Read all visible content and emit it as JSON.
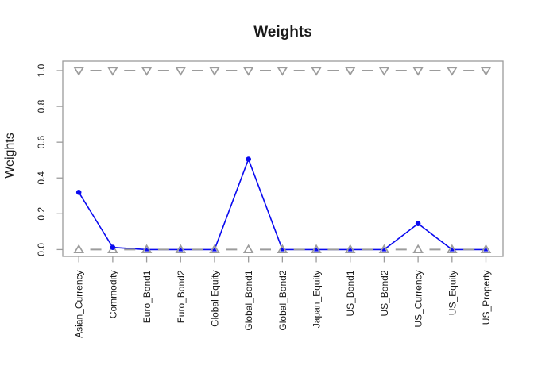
{
  "chart_data": {
    "type": "line",
    "title": "Weights",
    "xlabel": "",
    "ylabel": "Weights",
    "categories": [
      "Asian_Currency",
      "Commodity",
      "Euro_Bond1",
      "Euro_Bond2",
      "Global Equity",
      "Global_Bond1",
      "Global_Bond2",
      "Japan_Equity",
      "US_Bond1",
      "US_Bond2",
      "US_Currency",
      "US_Equity",
      "US_Property"
    ],
    "series": [
      {
        "name": "portfolio_weights",
        "marker": "filled-circle",
        "linestyle": "solid",
        "color": "#0a0af0",
        "values": [
          0.32,
          0.012,
          0,
          0,
          0,
          0.505,
          0,
          0,
          0,
          0,
          0.145,
          0,
          0
        ]
      },
      {
        "name": "upper_bound",
        "marker": "open-triangle-down",
        "linestyle": "dashed",
        "color": "#9c9c9c",
        "values": [
          1,
          1,
          1,
          1,
          1,
          1,
          1,
          1,
          1,
          1,
          1,
          1,
          1
        ]
      },
      {
        "name": "lower_bound",
        "marker": "open-triangle-up",
        "linestyle": "dashed",
        "color": "#9c9c9c",
        "values": [
          0,
          0,
          0,
          0,
          0,
          0,
          0,
          0,
          0,
          0,
          0,
          0,
          0
        ]
      }
    ],
    "ylim": [
      0,
      1
    ],
    "yticks": [
      "0.0",
      "0.2",
      "0.4",
      "0.6",
      "0.8",
      "1.0"
    ],
    "grid": false,
    "legend": null,
    "x_tick_label_rotation": 90,
    "y_tick_label_rotation": 90
  },
  "colors": {
    "accent_blue": "#0a0af0",
    "bound_gray": "#9c9c9c",
    "box_gray": "#9c9c9c",
    "text": "#1a1a1a",
    "background": "#ffffff"
  }
}
